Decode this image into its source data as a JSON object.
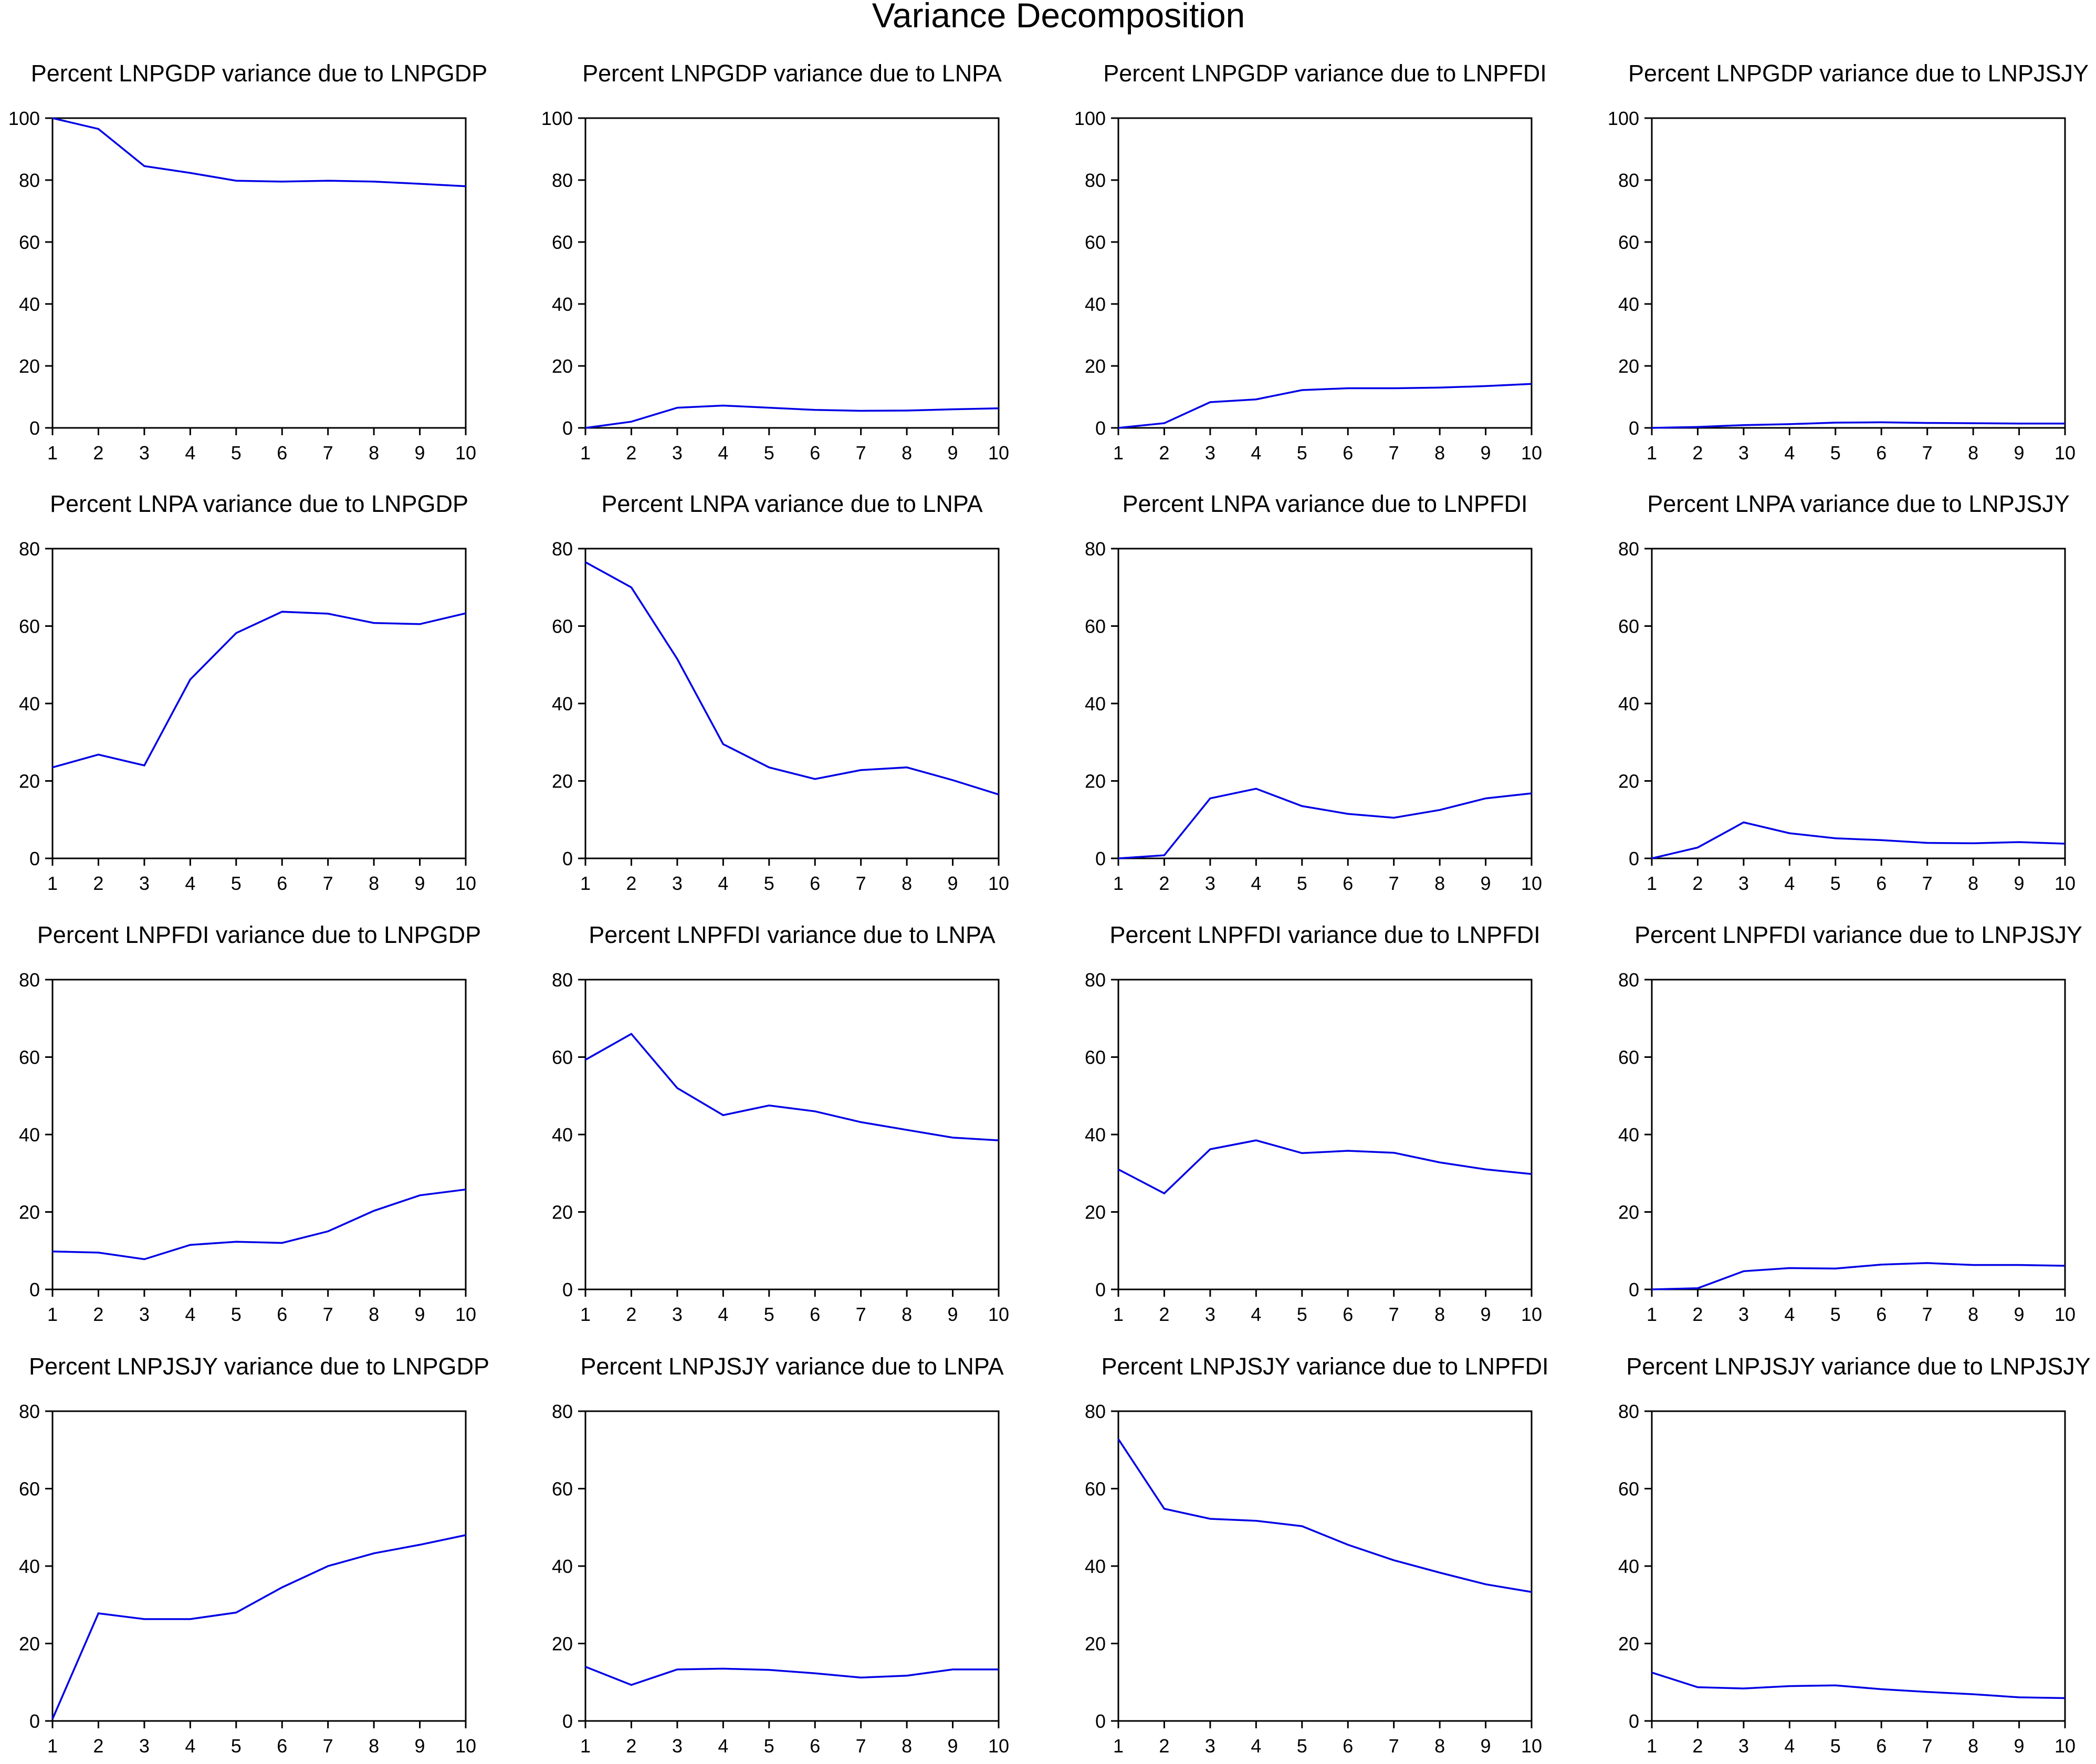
{
  "title": "Variance Decomposition",
  "colors": {
    "line": "#0000e6",
    "axes": "#000000",
    "background": "#ffffff"
  },
  "chart_data": [
    {
      "type": "line",
      "title": "Percent LNPGDP variance due to LNPGDP",
      "x": [
        1,
        2,
        3,
        4,
        5,
        6,
        7,
        8,
        9,
        10
      ],
      "values": [
        100,
        96.5,
        84.5,
        82.3,
        79.8,
        79.5,
        79.8,
        79.5,
        78.8,
        78
      ],
      "xlim": [
        1,
        10
      ],
      "ylim": [
        0,
        100
      ],
      "yticks": [
        0,
        20,
        40,
        60,
        80,
        100
      ],
      "xticks": [
        1,
        2,
        3,
        4,
        5,
        6,
        7,
        8,
        9,
        10
      ]
    },
    {
      "type": "line",
      "title": "Percent LNPGDP variance due to LNPA",
      "x": [
        1,
        2,
        3,
        4,
        5,
        6,
        7,
        8,
        9,
        10
      ],
      "values": [
        0,
        2,
        6.5,
        7.2,
        6.5,
        5.8,
        5.5,
        5.6,
        6,
        6.3
      ],
      "xlim": [
        1,
        10
      ],
      "ylim": [
        0,
        100
      ],
      "yticks": [
        0,
        20,
        40,
        60,
        80,
        100
      ],
      "xticks": [
        1,
        2,
        3,
        4,
        5,
        6,
        7,
        8,
        9,
        10
      ]
    },
    {
      "type": "line",
      "title": "Percent LNPGDP variance due to LNPFDI",
      "x": [
        1,
        2,
        3,
        4,
        5,
        6,
        7,
        8,
        9,
        10
      ],
      "values": [
        0,
        1.5,
        8.3,
        9.2,
        12.2,
        12.8,
        12.8,
        13,
        13.5,
        14.2
      ],
      "xlim": [
        1,
        10
      ],
      "ylim": [
        0,
        100
      ],
      "yticks": [
        0,
        20,
        40,
        60,
        80,
        100
      ],
      "xticks": [
        1,
        2,
        3,
        4,
        5,
        6,
        7,
        8,
        9,
        10
      ]
    },
    {
      "type": "line",
      "title": "Percent LNPGDP variance due to LNPJSJY",
      "x": [
        1,
        2,
        3,
        4,
        5,
        6,
        7,
        8,
        9,
        10
      ],
      "values": [
        0,
        0.3,
        0.9,
        1.2,
        1.7,
        1.8,
        1.6,
        1.5,
        1.4,
        1.4
      ],
      "xlim": [
        1,
        10
      ],
      "ylim": [
        0,
        100
      ],
      "yticks": [
        0,
        20,
        40,
        60,
        80,
        100
      ],
      "xticks": [
        1,
        2,
        3,
        4,
        5,
        6,
        7,
        8,
        9,
        10
      ]
    },
    {
      "type": "line",
      "title": "Percent LNPA variance due to LNPGDP",
      "x": [
        1,
        2,
        3,
        4,
        5,
        6,
        7,
        8,
        9,
        10
      ],
      "values": [
        23.5,
        26.8,
        24,
        46.2,
        58.2,
        63.7,
        63.2,
        60.8,
        60.5,
        63.3
      ],
      "xlim": [
        1,
        10
      ],
      "ylim": [
        0,
        80
      ],
      "yticks": [
        0,
        20,
        40,
        60,
        80
      ],
      "xticks": [
        1,
        2,
        3,
        4,
        5,
        6,
        7,
        8,
        9,
        10
      ]
    },
    {
      "type": "line",
      "title": "Percent LNPA variance due to LNPA",
      "x": [
        1,
        2,
        3,
        4,
        5,
        6,
        7,
        8,
        9,
        10
      ],
      "values": [
        76.5,
        70,
        51.5,
        29.5,
        23.5,
        20.5,
        22.8,
        23.5,
        20.2,
        16.5
      ],
      "xlim": [
        1,
        10
      ],
      "ylim": [
        0,
        80
      ],
      "yticks": [
        0,
        20,
        40,
        60,
        80
      ],
      "xticks": [
        1,
        2,
        3,
        4,
        5,
        6,
        7,
        8,
        9,
        10
      ]
    },
    {
      "type": "line",
      "title": "Percent LNPA variance due to LNPFDI",
      "x": [
        1,
        2,
        3,
        4,
        5,
        6,
        7,
        8,
        9,
        10
      ],
      "values": [
        0,
        0.8,
        15.5,
        18,
        13.5,
        11.5,
        10.5,
        12.5,
        15.5,
        16.8
      ],
      "xlim": [
        1,
        10
      ],
      "ylim": [
        0,
        80
      ],
      "yticks": [
        0,
        20,
        40,
        60,
        80
      ],
      "xticks": [
        1,
        2,
        3,
        4,
        5,
        6,
        7,
        8,
        9,
        10
      ]
    },
    {
      "type": "line",
      "title": "Percent LNPA variance due to LNPJSJY",
      "x": [
        1,
        2,
        3,
        4,
        5,
        6,
        7,
        8,
        9,
        10
      ],
      "values": [
        0,
        2.8,
        9.3,
        6.5,
        5.2,
        4.7,
        4,
        3.9,
        4.2,
        3.8
      ],
      "xlim": [
        1,
        10
      ],
      "ylim": [
        0,
        80
      ],
      "yticks": [
        0,
        20,
        40,
        60,
        80
      ],
      "xticks": [
        1,
        2,
        3,
        4,
        5,
        6,
        7,
        8,
        9,
        10
      ]
    },
    {
      "type": "line",
      "title": "Percent LNPFDI variance due to LNPGDP",
      "x": [
        1,
        2,
        3,
        4,
        5,
        6,
        7,
        8,
        9,
        10
      ],
      "values": [
        9.8,
        9.5,
        7.8,
        11.5,
        12.3,
        12,
        15,
        20.3,
        24.3,
        25.8
      ],
      "xlim": [
        1,
        10
      ],
      "ylim": [
        0,
        80
      ],
      "yticks": [
        0,
        20,
        40,
        60,
        80
      ],
      "xticks": [
        1,
        2,
        3,
        4,
        5,
        6,
        7,
        8,
        9,
        10
      ]
    },
    {
      "type": "line",
      "title": "Percent LNPFDI variance due to LNPA",
      "x": [
        1,
        2,
        3,
        4,
        5,
        6,
        7,
        8,
        9,
        10
      ],
      "values": [
        59.3,
        66,
        52,
        45,
        47.5,
        46,
        43.2,
        41.2,
        39.2,
        38.5
      ],
      "xlim": [
        1,
        10
      ],
      "ylim": [
        0,
        80
      ],
      "yticks": [
        0,
        20,
        40,
        60,
        80
      ],
      "xticks": [
        1,
        2,
        3,
        4,
        5,
        6,
        7,
        8,
        9,
        10
      ]
    },
    {
      "type": "line",
      "title": "Percent LNPFDI variance due to LNPFDI",
      "x": [
        1,
        2,
        3,
        4,
        5,
        6,
        7,
        8,
        9,
        10
      ],
      "values": [
        31,
        24.8,
        36.2,
        38.5,
        35.2,
        35.8,
        35.3,
        32.8,
        31,
        29.8
      ],
      "xlim": [
        1,
        10
      ],
      "ylim": [
        0,
        80
      ],
      "yticks": [
        0,
        20,
        40,
        60,
        80
      ],
      "xticks": [
        1,
        2,
        3,
        4,
        5,
        6,
        7,
        8,
        9,
        10
      ]
    },
    {
      "type": "line",
      "title": "Percent LNPFDI variance due to LNPJSJY",
      "x": [
        1,
        2,
        3,
        4,
        5,
        6,
        7,
        8,
        9,
        10
      ],
      "values": [
        0,
        0.3,
        4.7,
        5.5,
        5.4,
        6.4,
        6.8,
        6.3,
        6.3,
        6.1
      ],
      "xlim": [
        1,
        10
      ],
      "ylim": [
        0,
        80
      ],
      "yticks": [
        0,
        20,
        40,
        60,
        80
      ],
      "xticks": [
        1,
        2,
        3,
        4,
        5,
        6,
        7,
        8,
        9,
        10
      ]
    },
    {
      "type": "line",
      "title": "Percent LNPJSJY variance due to LNPGDP",
      "x": [
        1,
        2,
        3,
        4,
        5,
        6,
        7,
        8,
        9,
        10
      ],
      "values": [
        0.5,
        27.8,
        26.3,
        26.3,
        28,
        34.5,
        40,
        43.3,
        45.5,
        48
      ],
      "xlim": [
        1,
        10
      ],
      "ylim": [
        0,
        80
      ],
      "yticks": [
        0,
        20,
        40,
        60,
        80
      ],
      "xticks": [
        1,
        2,
        3,
        4,
        5,
        6,
        7,
        8,
        9,
        10
      ]
    },
    {
      "type": "line",
      "title": "Percent LNPJSJY variance due to LNPA",
      "x": [
        1,
        2,
        3,
        4,
        5,
        6,
        7,
        8,
        9,
        10
      ],
      "values": [
        14,
        9.3,
        13.3,
        13.5,
        13.2,
        12.3,
        11.2,
        11.7,
        13.3,
        13.3
      ],
      "xlim": [
        1,
        10
      ],
      "ylim": [
        0,
        80
      ],
      "yticks": [
        0,
        20,
        40,
        60,
        80
      ],
      "xticks": [
        1,
        2,
        3,
        4,
        5,
        6,
        7,
        8,
        9,
        10
      ]
    },
    {
      "type": "line",
      "title": "Percent LNPJSJY variance due to LNPFDI",
      "x": [
        1,
        2,
        3,
        4,
        5,
        6,
        7,
        8,
        9,
        10
      ],
      "values": [
        72.8,
        54.8,
        52.2,
        51.7,
        50.3,
        45.5,
        41.5,
        38.3,
        35.3,
        33.3
      ],
      "xlim": [
        1,
        10
      ],
      "ylim": [
        0,
        80
      ],
      "yticks": [
        0,
        20,
        40,
        60,
        80
      ],
      "xticks": [
        1,
        2,
        3,
        4,
        5,
        6,
        7,
        8,
        9,
        10
      ]
    },
    {
      "type": "line",
      "title": "Percent LNPJSJY variance due to LNPJSJY",
      "x": [
        1,
        2,
        3,
        4,
        5,
        6,
        7,
        8,
        9,
        10
      ],
      "values": [
        12.5,
        8.7,
        8.4,
        9,
        9.2,
        8.2,
        7.5,
        6.9,
        6.1,
        5.9
      ],
      "xlim": [
        1,
        10
      ],
      "ylim": [
        0,
        80
      ],
      "yticks": [
        0,
        20,
        40,
        60,
        80
      ],
      "xticks": [
        1,
        2,
        3,
        4,
        5,
        6,
        7,
        8,
        9,
        10
      ]
    }
  ]
}
